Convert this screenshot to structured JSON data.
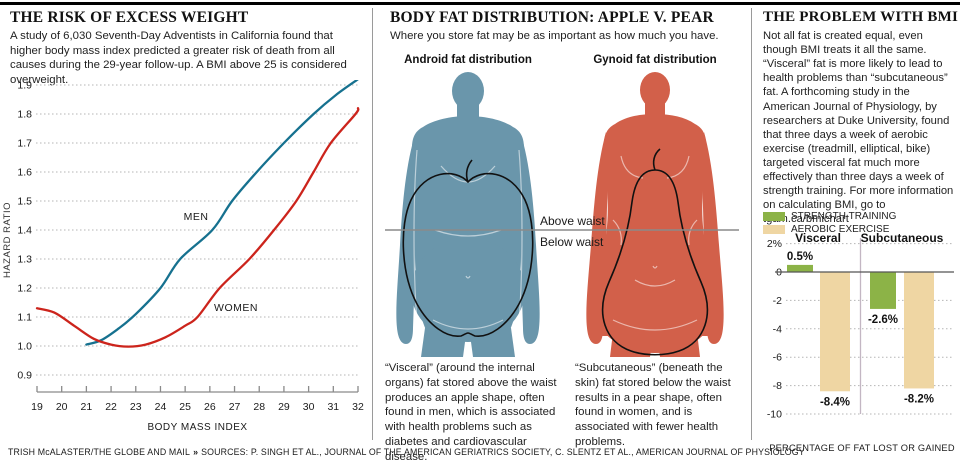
{
  "panel1": {
    "title": "THE RISK OF EXCESS WEIGHT",
    "subtitle": "A study of 6,030 Seventh-Day Adventists in California found that higher body mass index predicted a greater risk of death from all causes during the 29-year follow-up. A BMI above 25 is considered overweight."
  },
  "panel2": {
    "title": "BODY FAT DISTRIBUTION: APPLE V. PEAR",
    "subtitle": "Where you store fat may be as important as how much you have.",
    "figures": [
      {
        "label": "Android fat distribution",
        "caption": "“Visceral” (around the internal organs) fat stored above the waist produces an apple shape, often found in men, which is associated with health problems such as diabetes and cardiovascular disease."
      },
      {
        "label": "Gynoid fat distribution",
        "caption": "“Subcutaneous” (beneath the skin) fat stored below the waist results in a pear shape, often found in women, and is associated with fewer health problems."
      }
    ],
    "waist_labels": {
      "above": "Above waist",
      "below": "Below waist"
    },
    "colors": {
      "male_figure": "#6a96ab",
      "female_figure": "#d2604a",
      "outline": "#111111",
      "waist_line": "#8a8a8a"
    }
  },
  "panel3": {
    "title": "THE PROBLEM WITH BMI",
    "body": "Not all fat is created equal, even though BMI treats it all the same. “Visceral” fat is more likely to lead to health problems than “subcutaneous” fat. A forthcoming study in the American Journal of Physiology, by researchers at Duke University, found that three days a week of aerobic exercise (treadmill, elliptical, bike) targeted visceral fat much more effectively than three days a week of strength training. For more information on calculating BMI, go to tgam.ca/bmichart",
    "legend": [
      {
        "label": "STRENGTH TRAINING",
        "color": "#8cb347"
      },
      {
        "label": "AEROBIC EXERCISE",
        "color": "#efd6a3"
      }
    ]
  },
  "footer": {
    "credit": "TRISH McALASTER/THE GLOBE AND MAIL",
    "separator": "»",
    "sources": "SOURCES: P. SINGH ET AL., JOURNAL OF THE AMERICAN GERIATRICS SOCIETY, C. SLENTZ ET AL., AMERICAN JOURNAL OF PHYSIOLOGY"
  },
  "chart_data": [
    {
      "type": "line",
      "title": "THE RISK OF EXCESS WEIGHT",
      "xlabel": "BODY MASS INDEX",
      "ylabel": "HAZARD RATIO",
      "xlim": [
        19,
        32
      ],
      "ylim": [
        0.9,
        1.95
      ],
      "xticks": [
        19,
        20,
        21,
        22,
        23,
        24,
        25,
        26,
        27,
        28,
        29,
        30,
        31,
        32
      ],
      "yticks": [
        1.9,
        1.8,
        1.7,
        1.6,
        1.5,
        1.4,
        1.3,
        1.2,
        1.1,
        1.0,
        0.9
      ],
      "grid": "dotted horizontal",
      "series": [
        {
          "name": "MEN",
          "color": "#16718f",
          "points": [
            [
              21,
              1.005
            ],
            [
              21.6,
              1.02
            ],
            [
              22.3,
              1.06
            ],
            [
              23,
              1.11
            ],
            [
              24,
              1.2
            ],
            [
              24.8,
              1.3
            ],
            [
              26.1,
              1.4
            ],
            [
              26.9,
              1.5
            ],
            [
              27.9,
              1.6
            ],
            [
              29,
              1.7
            ],
            [
              30.2,
              1.8
            ],
            [
              31.1,
              1.865
            ],
            [
              32,
              1.92
            ]
          ]
        },
        {
          "name": "WOMEN",
          "color": "#cc241c",
          "points": [
            [
              19,
              1.13
            ],
            [
              19.7,
              1.115
            ],
            [
              20.5,
              1.07
            ],
            [
              21.3,
              1.025
            ],
            [
              22,
              1.005
            ],
            [
              22.7,
              0.998
            ],
            [
              23.4,
              1.005
            ],
            [
              24.2,
              1.03
            ],
            [
              25,
              1.07
            ],
            [
              25.5,
              1.1
            ],
            [
              26.4,
              1.2
            ],
            [
              27.6,
              1.3
            ],
            [
              28.6,
              1.4
            ],
            [
              29.5,
              1.5
            ],
            [
              30.2,
              1.6
            ],
            [
              30.9,
              1.7
            ],
            [
              31.9,
              1.8
            ],
            [
              32,
              1.82
            ]
          ]
        }
      ]
    },
    {
      "type": "bar",
      "categories": [
        "Visceral",
        "Subcutaneous"
      ],
      "series": [
        {
          "name": "STRENGTH TRAINING",
          "color": "#8cb347",
          "values": [
            0.5,
            -2.6
          ],
          "labels": [
            "0.5%",
            "-2.6%"
          ]
        },
        {
          "name": "AEROBIC EXERCISE",
          "color": "#efd6a3",
          "values": [
            -8.4,
            -8.2
          ],
          "labels": [
            "-8.4%",
            "-8.2%"
          ]
        }
      ],
      "ylim": [
        -10,
        2
      ],
      "yticks": [
        {
          "v": 2,
          "label": "2%"
        },
        {
          "v": 0,
          "label": "0"
        },
        {
          "v": -2,
          "label": "-2"
        },
        {
          "v": -4,
          "label": "-4"
        },
        {
          "v": -6,
          "label": "-6"
        },
        {
          "v": -8,
          "label": "-8"
        },
        {
          "v": -10,
          "label": "-10"
        }
      ],
      "xlabel": "PERCENTAGE OF FAT LOST OR GAINED",
      "grid": "dotted horizontal"
    }
  ]
}
